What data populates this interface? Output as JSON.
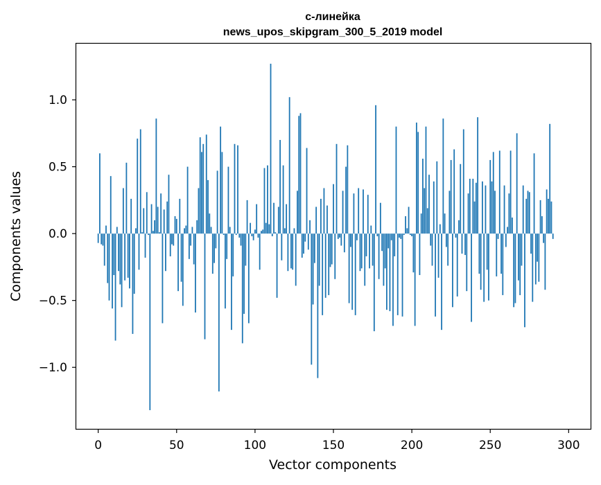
{
  "chart_data": {
    "type": "bar",
    "title": "с-линейка",
    "subtitle": "news_upos_skipgram_300_5_2019 model",
    "xlabel": "Vector components",
    "ylabel": "Components values",
    "xlim": [
      -14,
      314
    ],
    "ylim": [
      -1.46,
      1.42
    ],
    "x_ticks": [
      0,
      50,
      100,
      150,
      200,
      250,
      300
    ],
    "x_tick_labels": [
      "0",
      "50",
      "100",
      "150",
      "200",
      "250",
      "300"
    ],
    "y_ticks": [
      -1.0,
      -0.5,
      0.0,
      0.5,
      1.0
    ],
    "y_tick_labels": [
      "−1.0",
      "−0.5",
      "0.0",
      "0.5",
      "1.0"
    ],
    "grid": false,
    "bar_color": "#1f77b4",
    "categories_start": 0,
    "values": [
      -0.07,
      0.6,
      -0.08,
      -0.09,
      -0.24,
      0.06,
      -0.37,
      -0.5,
      0.43,
      -0.56,
      -0.31,
      -0.8,
      0.05,
      -0.28,
      -0.38,
      -0.55,
      0.34,
      -0.35,
      0.53,
      -0.33,
      -0.41,
      0.26,
      -0.75,
      -0.45,
      0.04,
      0.71,
      -0.27,
      0.78,
      0.01,
      0.19,
      -0.18,
      0.31,
      -0.01,
      -1.32,
      0.22,
      0.02,
      0.1,
      0.86,
      0.2,
      0.01,
      0.3,
      -0.67,
      0.18,
      -0.28,
      0.24,
      0.44,
      -0.17,
      -0.08,
      -0.09,
      0.13,
      0.11,
      -0.43,
      0.26,
      -0.36,
      -0.54,
      0.04,
      0.06,
      0.5,
      -0.19,
      -0.09,
      0.05,
      -0.23,
      -0.59,
      0.1,
      0.34,
      0.72,
      0.61,
      0.67,
      -0.79,
      0.74,
      0.4,
      0.15,
      0.05,
      -0.3,
      -0.22,
      -0.11,
      0.47,
      -1.18,
      0.8,
      0.61,
      -0.01,
      -0.56,
      -0.19,
      0.5,
      0.05,
      -0.72,
      -0.32,
      0.67,
      -0.01,
      0.66,
      -0.03,
      -0.09,
      -0.82,
      -0.6,
      -0.24,
      0.25,
      -0.67,
      0.08,
      -0.02,
      -0.05,
      0.03,
      0.22,
      -0.03,
      -0.27,
      0.02,
      0.03,
      0.49,
      0.08,
      0.51,
      0.07,
      1.27,
      -0.02,
      0.23,
      0.01,
      -0.48,
      0.2,
      0.7,
      -0.2,
      0.51,
      0.04,
      0.22,
      -0.28,
      1.02,
      -0.26,
      -0.27,
      0.04,
      -0.39,
      0.32,
      0.88,
      0.9,
      -0.18,
      -0.15,
      -0.06,
      0.64,
      -0.12,
      0.1,
      -0.98,
      -0.53,
      -0.22,
      0.2,
      -1.08,
      -0.39,
      0.26,
      -0.61,
      0.34,
      -0.48,
      0.21,
      -0.46,
      -0.25,
      -0.23,
      0.37,
      -0.34,
      0.67,
      -0.04,
      -0.03,
      -0.09,
      0.32,
      -0.14,
      0.5,
      0.66,
      -0.52,
      -0.1,
      -0.57,
      0.3,
      -0.61,
      -0.05,
      0.34,
      -0.28,
      -0.26,
      0.33,
      -0.39,
      -0.17,
      0.29,
      -0.26,
      0.06,
      -0.24,
      -0.73,
      0.96,
      -0.02,
      -0.34,
      0.23,
      -0.13,
      -0.39,
      -0.26,
      -0.57,
      -0.11,
      -0.58,
      -0.05,
      -0.69,
      -0.17,
      0.8,
      -0.61,
      -0.03,
      -0.04,
      -0.62,
      -0.01,
      0.13,
      0.04,
      0.2,
      -0.01,
      -0.02,
      -0.29,
      -0.69,
      0.83,
      0.76,
      -0.31,
      0.15,
      0.56,
      0.34,
      0.8,
      0.19,
      0.44,
      -0.09,
      -0.24,
      0.39,
      -0.62,
      0.54,
      -0.33,
      0.07,
      -0.72,
      0.86,
      0.15,
      -0.1,
      -0.24,
      0.32,
      0.55,
      -0.55,
      0.63,
      -0.03,
      -0.47,
      0.1,
      0.52,
      -0.15,
      0.78,
      -0.16,
      -0.43,
      0.3,
      0.41,
      -0.66,
      0.41,
      0.24,
      0.38,
      0.87,
      -0.3,
      -0.42,
      0.39,
      -0.51,
      0.36,
      -0.27,
      -0.5,
      0.55,
      0.39,
      0.61,
      0.32,
      -0.32,
      -0.04,
      0.62,
      -0.3,
      -0.46,
      0.36,
      -0.1,
      0.05,
      0.3,
      0.62,
      0.12,
      -0.55,
      -0.52,
      0.75,
      -0.35,
      -0.46,
      -0.24,
      0.36,
      -0.7,
      0.26,
      0.32,
      0.31,
      -0.15,
      -0.51,
      0.6,
      -0.38,
      -0.21,
      -0.36,
      0.25,
      0.13,
      -0.07,
      -0.42,
      0.33,
      0.26,
      0.82,
      0.24,
      -0.04
    ]
  }
}
